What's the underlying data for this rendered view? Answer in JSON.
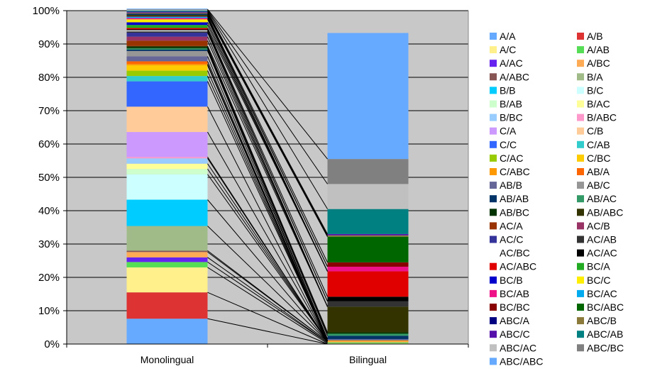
{
  "chart_data": {
    "type": "bar",
    "stacked": true,
    "categories": [
      "Monolingual",
      "Bilingual"
    ],
    "ylim": [
      0,
      100
    ],
    "y_ticks": [
      "0%",
      "10%",
      "20%",
      "30%",
      "40%",
      "50%",
      "60%",
      "70%",
      "80%",
      "90%",
      "100%"
    ],
    "grid": true,
    "legend_position": "right",
    "connector_lines": true,
    "series": [
      {
        "name": "A/A",
        "color": "#66aaff",
        "values": [
          7.6,
          0.0
        ]
      },
      {
        "name": "A/B",
        "color": "#dd3333",
        "values": [
          7.9,
          0.0
        ]
      },
      {
        "name": "A/C",
        "color": "#fff08c",
        "values": [
          7.5,
          0.2
        ]
      },
      {
        "name": "A/AB",
        "color": "#55dd55",
        "values": [
          1.6,
          0.3
        ]
      },
      {
        "name": "A/AC",
        "color": "#6622ee",
        "values": [
          1.4,
          0.0
        ]
      },
      {
        "name": "A/BC",
        "color": "#ffaa55",
        "values": [
          1.6,
          0.3
        ]
      },
      {
        "name": "A/ABC",
        "color": "#885555",
        "values": [
          0.4,
          0.0
        ]
      },
      {
        "name": "B/A",
        "color": "#a0bb88",
        "values": [
          7.4,
          0.0
        ]
      },
      {
        "name": "B/B",
        "color": "#00ccff",
        "values": [
          7.9,
          0.0
        ]
      },
      {
        "name": "B/C",
        "color": "#ccffff",
        "values": [
          7.6,
          0.0
        ]
      },
      {
        "name": "B/AB",
        "color": "#ccffcc",
        "values": [
          1.6,
          0.0
        ]
      },
      {
        "name": "B/AC",
        "color": "#ffff99",
        "values": [
          1.6,
          0.0
        ]
      },
      {
        "name": "B/BC",
        "color": "#99ccff",
        "values": [
          1.6,
          0.0
        ]
      },
      {
        "name": "B/ABC",
        "color": "#ff99cc",
        "values": [
          0.4,
          0.0
        ]
      },
      {
        "name": "C/A",
        "color": "#cc99ff",
        "values": [
          7.5,
          0.0
        ]
      },
      {
        "name": "C/B",
        "color": "#ffcc99",
        "values": [
          7.6,
          0.0
        ]
      },
      {
        "name": "C/C",
        "color": "#3366ff",
        "values": [
          7.6,
          0.0
        ]
      },
      {
        "name": "C/AB",
        "color": "#33cccc",
        "values": [
          1.6,
          0.0
        ]
      },
      {
        "name": "C/AC",
        "color": "#99cc00",
        "values": [
          1.6,
          0.0
        ]
      },
      {
        "name": "C/BC",
        "color": "#ffcc00",
        "values": [
          1.6,
          0.0
        ]
      },
      {
        "name": "C/ABC",
        "color": "#ff9900",
        "values": [
          0.4,
          0.3
        ]
      },
      {
        "name": "AB/A",
        "color": "#ff6600",
        "values": [
          0.8,
          0.0
        ]
      },
      {
        "name": "AB/B",
        "color": "#666699",
        "values": [
          1.5,
          0.4
        ]
      },
      {
        "name": "AB/C",
        "color": "#969696",
        "values": [
          1.6,
          0.0
        ]
      },
      {
        "name": "AB/AB",
        "color": "#003366",
        "values": [
          0.4,
          1.0
        ]
      },
      {
        "name": "AB/AC",
        "color": "#339966",
        "values": [
          0.4,
          0.6
        ]
      },
      {
        "name": "AB/BC",
        "color": "#003300",
        "values": [
          0.4,
          0.4
        ]
      },
      {
        "name": "AB/ABC",
        "color": "#333300",
        "values": [
          0.3,
          7.7
        ]
      },
      {
        "name": "AC/A",
        "color": "#993300",
        "values": [
          1.6,
          0.0
        ]
      },
      {
        "name": "AC/B",
        "color": "#993366",
        "values": [
          1.2,
          0.0
        ]
      },
      {
        "name": "AC/C",
        "color": "#333399",
        "values": [
          1.2,
          0.0
        ]
      },
      {
        "name": "AC/AB",
        "color": "#333333",
        "values": [
          0.4,
          1.6
        ]
      },
      {
        "name": "AC/BC",
        "color": "#ffffff",
        "values": [
          0.3,
          0.0
        ]
      },
      {
        "name": "AC/AC",
        "color": "#000000",
        "values": [
          0.3,
          1.4
        ]
      },
      {
        "name": "AC/ABC",
        "color": "#e00000",
        "values": [
          0.4,
          7.6
        ]
      },
      {
        "name": "BC/A",
        "color": "#22aa22",
        "values": [
          0.9,
          0.0
        ]
      },
      {
        "name": "BC/B",
        "color": "#0000cc",
        "values": [
          0.8,
          0.0
        ]
      },
      {
        "name": "BC/C",
        "color": "#ffee00",
        "values": [
          0.9,
          0.0
        ]
      },
      {
        "name": "BC/AB",
        "color": "#ee1188",
        "values": [
          0.4,
          1.4
        ]
      },
      {
        "name": "BC/AC",
        "color": "#00aaee",
        "values": [
          0.4,
          0.0
        ]
      },
      {
        "name": "BC/BC",
        "color": "#880000",
        "values": [
          0.3,
          1.3
        ]
      },
      {
        "name": "BC/ABC",
        "color": "#006600",
        "values": [
          0.3,
          7.7
        ]
      },
      {
        "name": "ABC/A",
        "color": "#000080",
        "values": [
          0.3,
          0.0
        ]
      },
      {
        "name": "ABC/B",
        "color": "#8c7a3a",
        "values": [
          0.3,
          0.4
        ]
      },
      {
        "name": "ABC/C",
        "color": "#5511aa",
        "values": [
          0.3,
          0.4
        ]
      },
      {
        "name": "ABC/AB",
        "color": "#008080",
        "values": [
          0.3,
          7.5
        ]
      },
      {
        "name": "ABC/AC",
        "color": "#c0c0c0",
        "values": [
          0.2,
          7.5
        ]
      },
      {
        "name": "ABC/BC",
        "color": "#808080",
        "values": [
          0.2,
          7.5
        ]
      },
      {
        "name": "ABC/ABC",
        "color": "#66aaff",
        "values": [
          0.2,
          37.8
        ]
      }
    ]
  }
}
